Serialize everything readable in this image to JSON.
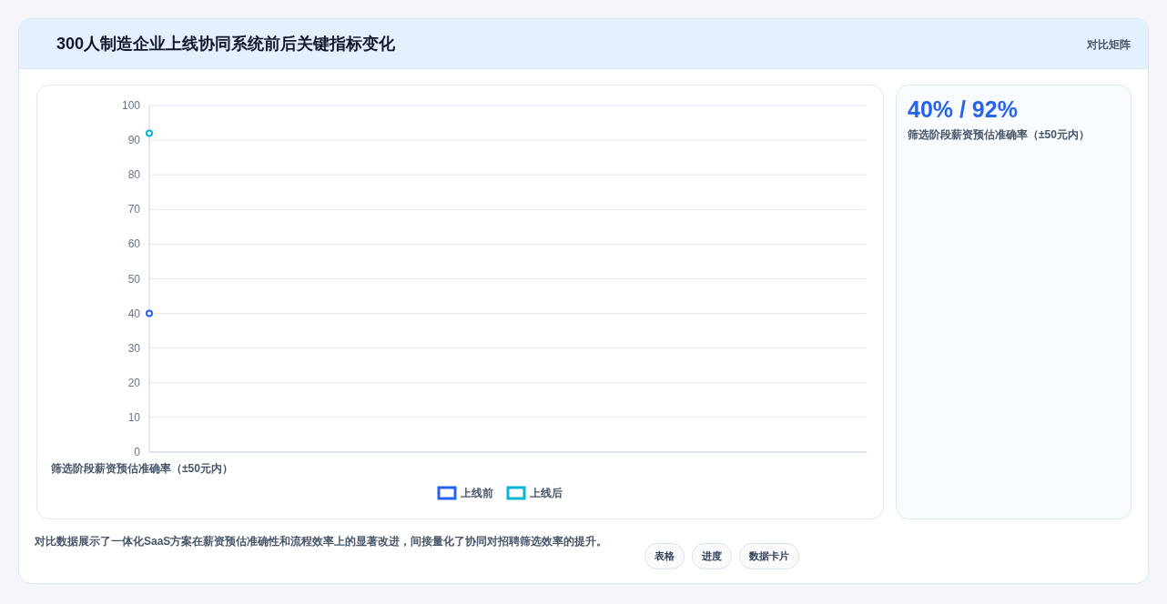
{
  "chart_data": [
    {
      "type": "line",
      "title": "300人制造企业上线协同系统前后关键指标变化",
      "categories": [
        "筛选阶段薪资预估准确率（±50元内）"
      ],
      "series": [
        {
          "name": "上线前",
          "color": "#2563eb",
          "values": [
            40
          ]
        },
        {
          "name": "上线后",
          "color": "#06b6d4",
          "values": [
            92
          ]
        }
      ],
      "ylim": [
        0,
        100
      ],
      "yticks": [
        0,
        10,
        20,
        30,
        40,
        50,
        60,
        70,
        80,
        90,
        100
      ],
      "grid": "y",
      "legend": "bottom",
      "marker": "circle",
      "annotations": [
        "对比矩阵",
        "对比数据展示了一体化SaaS方案在薪资预估准确性和流程效率上的显著改进，间接量化了协同对招聘筛选效率的提升。",
        "表格",
        "进度",
        "数据卡片"
      ]
    },
    {
      "type": "other",
      "title": "40% / 92%",
      "subtitle": "筛选阶段薪资预估准确率（±50元内）"
    }
  ]
}
